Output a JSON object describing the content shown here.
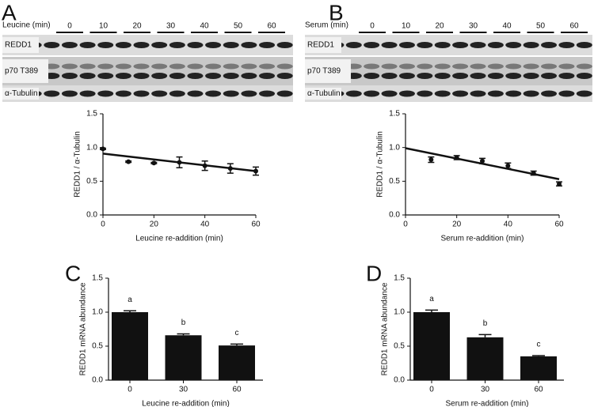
{
  "chart_data": [
    {
      "type": "scatter",
      "panel": "A",
      "blot": {
        "treatment": "Leucine (min)",
        "timepoints": [
          0,
          10,
          20,
          30,
          40,
          50,
          60
        ],
        "rows": [
          "REDD1",
          "p70 T389",
          "α-Tubulin"
        ]
      },
      "x_label": "Leucine re-addition (min)",
      "y_label": "REDD1 / α-Tubulin",
      "x": [
        0,
        10,
        20,
        30,
        40,
        50,
        60
      ],
      "values": [
        0.98,
        0.79,
        0.77,
        0.78,
        0.73,
        0.69,
        0.65
      ],
      "errors": [
        0.01,
        0.01,
        0.01,
        0.08,
        0.07,
        0.07,
        0.06
      ],
      "fit": {
        "x": [
          0,
          60
        ],
        "values": [
          0.91,
          0.65
        ]
      },
      "xlim": [
        0,
        60
      ],
      "xticks": [
        0,
        20,
        40,
        60
      ],
      "ylim": [
        0,
        1.5
      ],
      "yticks": [
        {
          "value": 0,
          "label": "0.0"
        },
        0.5,
        {
          "value": 1,
          "label": "1.0"
        },
        1.5
      ],
      "color": "#111111"
    },
    {
      "type": "scatter",
      "panel": "B",
      "blot": {
        "treatment": "Serum (min)",
        "timepoints": [
          0,
          10,
          20,
          30,
          40,
          50,
          60
        ],
        "rows": [
          "REDD1",
          "p70 T389",
          "α-Tubulin"
        ]
      },
      "x_label": "Serum re-addition (min)",
      "y_label": "REDD1 / α-Tubulin",
      "x": [
        10,
        20,
        30,
        40,
        50,
        60
      ],
      "values": [
        0.82,
        0.85,
        0.8,
        0.73,
        0.62,
        0.46
      ],
      "errors": [
        0.04,
        0.03,
        0.04,
        0.04,
        0.03,
        0.03
      ],
      "fit": {
        "x": [
          0,
          60
        ],
        "values": [
          0.99,
          0.53
        ]
      },
      "xlim": [
        0,
        60
      ],
      "xticks": [
        0,
        20,
        40,
        60
      ],
      "ylim": [
        0,
        1.5
      ],
      "yticks": [
        {
          "value": 0,
          "label": "0.0"
        },
        0.5,
        {
          "value": 1,
          "label": "1.0"
        },
        1.5
      ],
      "color": "#111111"
    },
    {
      "type": "bar",
      "panel": "C",
      "x_label": "Leucine re-addition (min)",
      "y_label": "REDD1 mRNA abundance",
      "categories": [
        "0",
        "30",
        "60"
      ],
      "values": [
        1.0,
        0.66,
        0.51
      ],
      "errors": [
        0.02,
        0.02,
        0.02
      ],
      "annotations": [
        "a",
        "b",
        "c"
      ],
      "ylim": [
        0,
        1.5
      ],
      "yticks": [
        {
          "value": 0,
          "label": "0.0"
        },
        0.5,
        {
          "value": 1,
          "label": "1.0"
        },
        1.5
      ],
      "color": "#111111"
    },
    {
      "type": "bar",
      "panel": "D",
      "x_label": "Serum re-addition (min)",
      "y_label": "REDD1 mRNA abundance",
      "categories": [
        "0",
        "30",
        "60"
      ],
      "values": [
        1.0,
        0.63,
        0.35
      ],
      "errors": [
        0.03,
        0.04,
        0.01
      ],
      "annotations": [
        "a",
        "b",
        "c"
      ],
      "ylim": [
        0,
        1.5
      ],
      "yticks": [
        {
          "value": 0,
          "label": "0.0"
        },
        0.5,
        {
          "value": 1,
          "label": "1.0"
        },
        1.5
      ],
      "color": "#111111"
    }
  ]
}
